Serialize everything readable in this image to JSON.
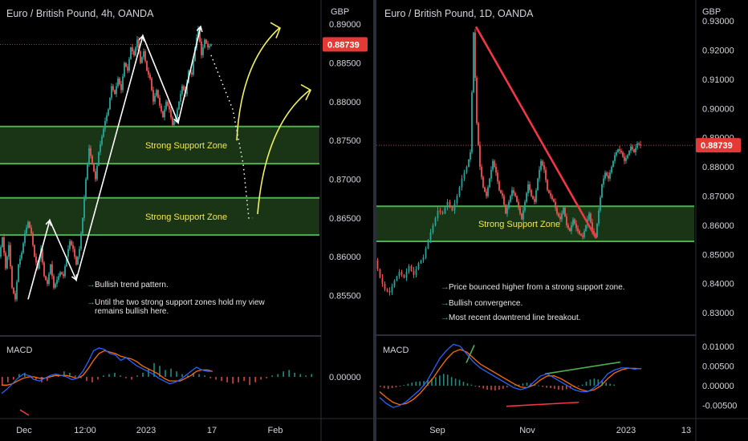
{
  "colors": {
    "background": "#000000",
    "zone_fill": "#1e3d1a",
    "zone_border": "#4caf50",
    "zone_text": "#f3e84a",
    "annotation_text": "#e6e6e6",
    "arrow_green": "#4caf50",
    "bull_candle": "#26a69a",
    "bear_candle": "#ef5350",
    "macd_line": "#2962ff",
    "signal_line": "#ff6d00",
    "price_badge": "#e53935",
    "trend_line": "#f23645",
    "curve_arrow": "#f0f060",
    "axis_text": "#d1d4dc"
  },
  "chart_data": [
    {
      "type": "candlestick",
      "title": "Euro / British Pound, 4h, OANDA",
      "currency_label": "GBP",
      "current_price": "0.88739",
      "ylim": [
        0.8505,
        0.8925
      ],
      "y_ticks": [
        "0.89000",
        "0.88500",
        "0.88000",
        "0.87500",
        "0.87000",
        "0.86500",
        "0.86000",
        "0.85500"
      ],
      "x_ticks": [
        "Dec",
        "12:00",
        "2023",
        "17",
        "Feb"
      ],
      "support_zones": [
        {
          "label": "Strong Support Zone",
          "low": 0.872,
          "high": 0.8768
        },
        {
          "label": "Strong Support Zone",
          "low": 0.8628,
          "high": 0.8676
        }
      ],
      "price_path": [
        [
          0,
          0.86
        ],
        [
          4,
          0.8625
        ],
        [
          8,
          0.8585
        ],
        [
          12,
          0.8615
        ],
        [
          16,
          0.856
        ],
        [
          20,
          0.8545
        ],
        [
          24,
          0.859
        ],
        [
          28,
          0.8605
        ],
        [
          32,
          0.863
        ],
        [
          36,
          0.8645
        ],
        [
          40,
          0.863
        ],
        [
          44,
          0.86
        ],
        [
          48,
          0.8585
        ],
        [
          52,
          0.861
        ],
        [
          56,
          0.8575
        ],
        [
          60,
          0.8565
        ],
        [
          64,
          0.859
        ],
        [
          68,
          0.856
        ],
        [
          72,
          0.857
        ],
        [
          76,
          0.858
        ],
        [
          80,
          0.8575
        ],
        [
          84,
          0.86
        ],
        [
          88,
          0.862
        ],
        [
          92,
          0.861
        ],
        [
          96,
          0.859
        ],
        [
          100,
          0.861
        ],
        [
          104,
          0.865
        ],
        [
          108,
          0.87
        ],
        [
          112,
          0.874
        ],
        [
          116,
          0.872
        ],
        [
          120,
          0.87
        ],
        [
          124,
          0.8735
        ],
        [
          128,
          0.8755
        ],
        [
          132,
          0.8775
        ],
        [
          136,
          0.879
        ],
        [
          140,
          0.882
        ],
        [
          144,
          0.881
        ],
        [
          148,
          0.883
        ],
        [
          152,
          0.8815
        ],
        [
          156,
          0.885
        ],
        [
          160,
          0.884
        ],
        [
          164,
          0.887
        ],
        [
          168,
          0.886
        ],
        [
          172,
          0.888
        ],
        [
          176,
          0.885
        ],
        [
          180,
          0.8865
        ],
        [
          184,
          0.884
        ],
        [
          188,
          0.883
        ],
        [
          192,
          0.88
        ],
        [
          196,
          0.8815
        ],
        [
          200,
          0.8795
        ],
        [
          204,
          0.878
        ],
        [
          208,
          0.88
        ],
        [
          212,
          0.879
        ],
        [
          216,
          0.877
        ],
        [
          220,
          0.878
        ],
        [
          224,
          0.88
        ],
        [
          228,
          0.882
        ],
        [
          232,
          0.881
        ],
        [
          236,
          0.884
        ],
        [
          240,
          0.8835
        ],
        [
          244,
          0.887
        ],
        [
          248,
          0.8895
        ],
        [
          252,
          0.886
        ],
        [
          256,
          0.888
        ],
        [
          260,
          0.887
        ],
        [
          264,
          0.8874
        ]
      ],
      "trend_zigzag": [
        [
          35,
          0.8545
        ],
        [
          62,
          0.8647
        ],
        [
          95,
          0.857
        ],
        [
          178,
          0.8885
        ],
        [
          222,
          0.8773
        ],
        [
          250,
          0.8897
        ]
      ],
      "projection_dots": [
        [
          263,
          0.886
        ],
        [
          290,
          0.879
        ],
        [
          303,
          0.872
        ],
        [
          310,
          0.865
        ],
        [
          315,
          0.865
        ]
      ],
      "annotations": [
        "Bullish trend pattern.",
        "Until the two strong support zones hold my view remains bullish here."
      ],
      "macd": {
        "label": "MACD",
        "y_ticks": [
          "0.00000"
        ],
        "ylim": [
          -0.0028,
          0.0028
        ],
        "histogram": [
          -0.0006,
          -0.0004,
          -0.0002,
          0.0002,
          0.0003,
          0.0001,
          -0.0002,
          -0.0004,
          -0.0003,
          0.0001,
          0.0002,
          0.0004,
          0.0003,
          0.0001,
          -0.0001,
          -0.0003,
          -0.0004,
          -0.0002,
          0.0001,
          0.0002,
          0.0003,
          0.0001,
          -0.0001,
          -0.0002,
          0.0001,
          0.0003,
          0.0006,
          0.001,
          0.0008,
          0.0005,
          0.0006,
          0.0004,
          0.0002,
          0.0001,
          0.0003,
          0.0002,
          0.0001,
          -0.0001,
          -0.0002,
          -0.0003,
          -0.0004,
          -0.0005,
          -0.0004,
          -0.0003,
          -0.0006,
          -0.0004,
          -0.0002,
          -0.0001,
          0.0001,
          0.0002,
          0.0004,
          0.0005,
          0.0003,
          0.0002,
          0.0001,
          0.0002
        ],
        "macd_line": [
          -0.0012,
          -0.0009,
          -0.0005,
          -0.0001,
          0.0002,
          0.0001,
          -0.0002,
          -0.0003,
          -0.0001,
          0.0001,
          0.0002,
          0.0001,
          0.0,
          -0.0002,
          -0.0001,
          0.0004,
          0.0011,
          0.0019,
          0.0021,
          0.002,
          0.0017,
          0.0016,
          0.0012,
          0.0014,
          0.0011,
          0.0008,
          0.0006,
          0.0004,
          0.0002,
          -0.0001,
          -0.0003,
          -0.0005,
          -0.0004,
          -0.0002,
          0.0001,
          0.0004,
          0.0007,
          0.0005,
          0.0004,
          0.0004
        ],
        "signal_line": [
          -0.0006,
          -0.0006,
          -0.0005,
          -0.0003,
          -0.0001,
          0.0,
          0.0,
          -0.0001,
          -0.0001,
          0.0,
          0.0001,
          0.0001,
          0.0001,
          0.0,
          -0.0001,
          0.0001,
          0.0006,
          0.0012,
          0.0017,
          0.0019,
          0.0018,
          0.0017,
          0.0015,
          0.0014,
          0.0013,
          0.0011,
          0.0008,
          0.0006,
          0.0004,
          0.0002,
          -0.0001,
          -0.0003,
          -0.0003,
          -0.0003,
          -0.0001,
          0.0001,
          0.0004,
          0.0005,
          0.0005,
          0.0004
        ]
      }
    },
    {
      "type": "candlestick",
      "title": "Euro / British Pound, 1D, OANDA",
      "currency_label": "GBP",
      "current_price": "0.88739",
      "ylim": [
        0.824,
        0.9355
      ],
      "y_ticks": [
        "0.93000",
        "0.92000",
        "0.91000",
        "0.90000",
        "0.89000",
        "0.88000",
        "0.87000",
        "0.86000",
        "0.85000",
        "0.84000",
        "0.83000"
      ],
      "x_ticks": [
        "Sep",
        "Nov",
        "2023",
        "13"
      ],
      "support_zones": [
        {
          "label": "Strong Support Zone",
          "low": 0.8545,
          "high": 0.8665
        }
      ],
      "price_path": [
        [
          0,
          0.848
        ],
        [
          6,
          0.842
        ],
        [
          12,
          0.838
        ],
        [
          18,
          0.837
        ],
        [
          24,
          0.841
        ],
        [
          30,
          0.844
        ],
        [
          36,
          0.842
        ],
        [
          42,
          0.846
        ],
        [
          48,
          0.843
        ],
        [
          54,
          0.847
        ],
        [
          60,
          0.849
        ],
        [
          66,
          0.855
        ],
        [
          72,
          0.86
        ],
        [
          78,
          0.865
        ],
        [
          84,
          0.864
        ],
        [
          90,
          0.868
        ],
        [
          96,
          0.865
        ],
        [
          102,
          0.87
        ],
        [
          108,
          0.876
        ],
        [
          114,
          0.88
        ],
        [
          118,
          0.885
        ],
        [
          122,
          0.926
        ],
        [
          126,
          0.895
        ],
        [
          130,
          0.88
        ],
        [
          134,
          0.873
        ],
        [
          138,
          0.87
        ],
        [
          142,
          0.876
        ],
        [
          146,
          0.882
        ],
        [
          150,
          0.878
        ],
        [
          154,
          0.872
        ],
        [
          158,
          0.87
        ],
        [
          162,
          0.864
        ],
        [
          166,
          0.868
        ],
        [
          170,
          0.872
        ],
        [
          174,
          0.87
        ],
        [
          178,
          0.866
        ],
        [
          182,
          0.862
        ],
        [
          186,
          0.868
        ],
        [
          190,
          0.874
        ],
        [
          194,
          0.87
        ],
        [
          198,
          0.868
        ],
        [
          202,
          0.876
        ],
        [
          206,
          0.882
        ],
        [
          210,
          0.879
        ],
        [
          214,
          0.872
        ],
        [
          218,
          0.87
        ],
        [
          222,
          0.868
        ],
        [
          226,
          0.864
        ],
        [
          230,
          0.862
        ],
        [
          234,
          0.866
        ],
        [
          238,
          0.86
        ],
        [
          242,
          0.858
        ],
        [
          246,
          0.862
        ],
        [
          250,
          0.859
        ],
        [
          254,
          0.857
        ],
        [
          258,
          0.856
        ],
        [
          262,
          0.86
        ],
        [
          266,
          0.864
        ],
        [
          270,
          0.858
        ],
        [
          274,
          0.856
        ],
        [
          278,
          0.865
        ],
        [
          282,
          0.874
        ],
        [
          286,
          0.878
        ],
        [
          290,
          0.876
        ],
        [
          294,
          0.88
        ],
        [
          298,
          0.884
        ],
        [
          302,
          0.886
        ],
        [
          306,
          0.885
        ],
        [
          310,
          0.882
        ],
        [
          314,
          0.884
        ],
        [
          318,
          0.887
        ],
        [
          322,
          0.885
        ],
        [
          326,
          0.888
        ],
        [
          330,
          0.8874
        ]
      ],
      "trend_line": [
        [
          124,
          0.928
        ],
        [
          274,
          0.8555
        ]
      ],
      "annotations": [
        "Price bounced higher from a strong support zone.",
        "Bullish convergence.",
        "Most recent downtrend line breakout."
      ],
      "macd": {
        "label": "MACD",
        "y_ticks": [
          "0.01000",
          "0.00500",
          "0.00000",
          "-0.00500"
        ],
        "ylim": [
          -0.0075,
          0.012
        ],
        "histogram": [
          -0.0003,
          -0.0006,
          -0.0008,
          -0.0006,
          -0.0004,
          -0.0002,
          0.0002,
          0.0005,
          0.0008,
          0.001,
          0.0011,
          0.0012,
          0.0014,
          0.0018,
          0.0022,
          0.0026,
          0.003,
          0.0028,
          0.0022,
          0.0018,
          0.0015,
          0.001,
          0.0006,
          0.0003,
          -0.0001,
          -0.0004,
          -0.0007,
          -0.001,
          -0.0011,
          -0.0012,
          -0.001,
          -0.0008,
          -0.0004,
          -0.0002,
          0.0001,
          0.0003,
          0.0006,
          0.0008,
          0.0006,
          0.0003,
          0.0001,
          -0.0003,
          -0.0005,
          -0.0006,
          -0.0008,
          -0.001,
          -0.0011,
          -0.0009,
          -0.0007,
          -0.0004,
          -0.0001,
          0.0003,
          0.001,
          0.0016,
          0.0018,
          0.0016,
          0.0012,
          0.0008,
          0.0005,
          0.0003
        ],
        "macd_line": [
          -0.003,
          -0.0045,
          -0.0055,
          -0.005,
          -0.004,
          -0.0025,
          -0.001,
          0.001,
          0.004,
          0.007,
          0.009,
          0.0105,
          0.01,
          0.008,
          0.006,
          0.0045,
          0.0035,
          0.0025,
          0.0015,
          0.0005,
          -0.0005,
          -0.001,
          -0.0005,
          0.001,
          0.0025,
          0.003,
          0.002,
          0.001,
          0.0,
          -0.001,
          -0.0015,
          -0.0015,
          -0.0005,
          0.001,
          0.003,
          0.004,
          0.0045,
          0.0045,
          0.0042,
          0.0044
        ],
        "signal_line": [
          -0.0015,
          -0.003,
          -0.0042,
          -0.0048,
          -0.0045,
          -0.0035,
          -0.002,
          0.0,
          0.002,
          0.0045,
          0.0068,
          0.0085,
          0.0092,
          0.0085,
          0.007,
          0.0055,
          0.0045,
          0.0035,
          0.0025,
          0.0015,
          0.0005,
          -0.0003,
          -0.0005,
          0.0002,
          0.0015,
          0.0025,
          0.0025,
          0.0018,
          0.0008,
          -0.0002,
          -0.001,
          -0.0014,
          -0.001,
          0.0,
          0.0018,
          0.0032,
          0.004,
          0.0044,
          0.0044,
          0.0043
        ]
      }
    }
  ]
}
